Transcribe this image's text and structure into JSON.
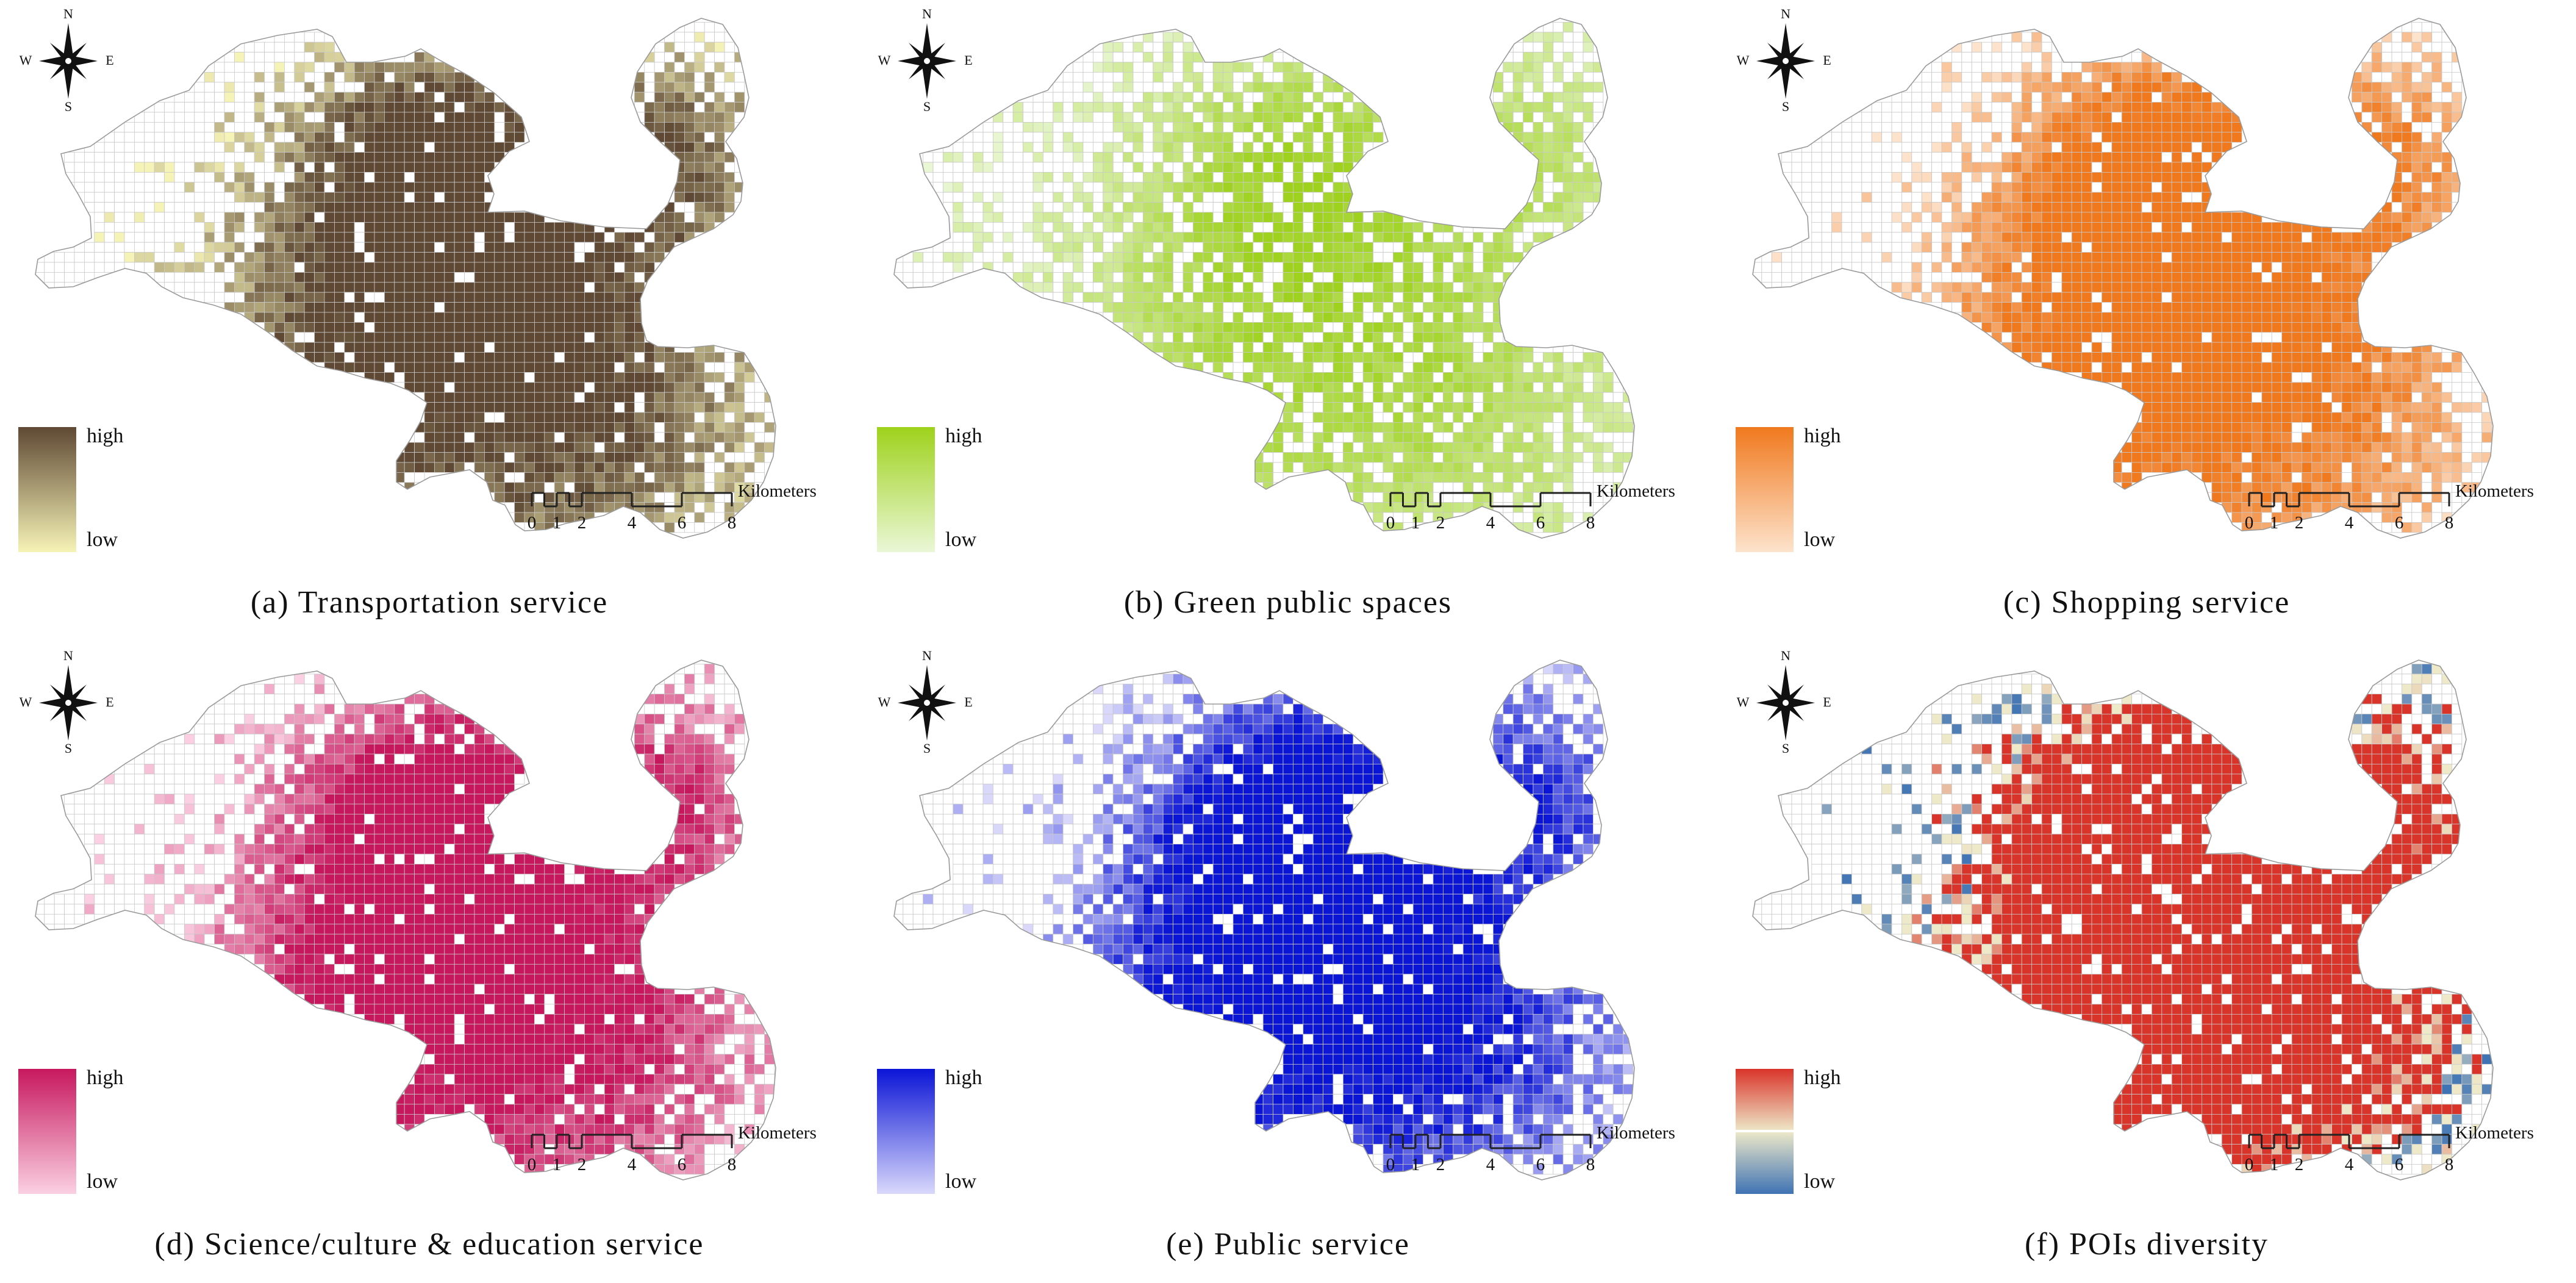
{
  "compass": {
    "n": "N",
    "s": "S",
    "e": "E",
    "w": "W"
  },
  "scale_bar": {
    "ticks": [
      "0",
      "1",
      "2",
      "4",
      "6",
      "8"
    ],
    "unit": "Kilometers"
  },
  "legend": {
    "high": "high",
    "low": "low"
  },
  "panels": [
    {
      "caption": "(a) Transportation service",
      "colors": {
        "low": "#f6f3b6",
        "high": "#5f4934"
      }
    },
    {
      "caption": "(b) Green public spaces",
      "colors": {
        "low": "#eaf7d6",
        "high": "#9ed21c"
      }
    },
    {
      "caption": "(c) Shopping service",
      "colors": {
        "low": "#fde3cc",
        "high": "#f0791e"
      }
    },
    {
      "caption": "(d) Science/culture & education service",
      "colors": {
        "low": "#fbd0e2",
        "high": "#c7185e"
      }
    },
    {
      "caption": "(e) Public service",
      "colors": {
        "low": "#d9d8fb",
        "high": "#0b15d6"
      }
    },
    {
      "caption": "(f) POIs diversity",
      "colors": {
        "low": "#3f73b4",
        "mid": "#eee9c9",
        "high": "#d9342a"
      }
    }
  ]
}
